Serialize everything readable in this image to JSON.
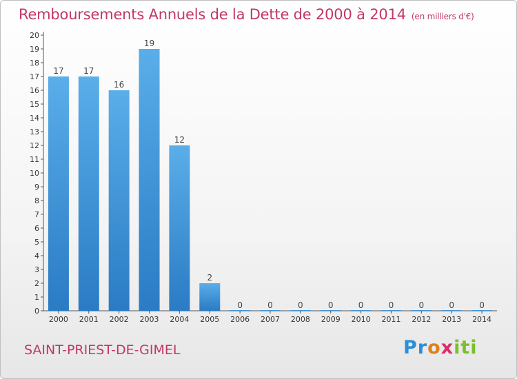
{
  "title": "Remboursements Annuels de la Dette de 2000 à 2014",
  "unit": "(en milliers d'€)",
  "commune": "SAINT-PRIEST-DE-GIMEL",
  "logo": "Proxiti",
  "colors": {
    "bar": "#3d94d9",
    "title": "#c2366a",
    "grid": "#cccccc"
  },
  "chart_data": {
    "type": "bar",
    "categories": [
      "2000",
      "2001",
      "2002",
      "2003",
      "2004",
      "2005",
      "2006",
      "2007",
      "2008",
      "2009",
      "2010",
      "2011",
      "2012",
      "2013",
      "2014"
    ],
    "values": [
      17,
      17,
      16,
      19,
      12,
      2,
      0,
      0,
      0,
      0,
      0,
      0,
      0,
      0,
      0
    ],
    "ylim": [
      0,
      20
    ],
    "yticks": [
      0,
      1,
      2,
      3,
      4,
      5,
      6,
      7,
      8,
      9,
      10,
      11,
      12,
      13,
      14,
      15,
      16,
      17,
      18,
      19,
      20
    ],
    "grid": false
  }
}
